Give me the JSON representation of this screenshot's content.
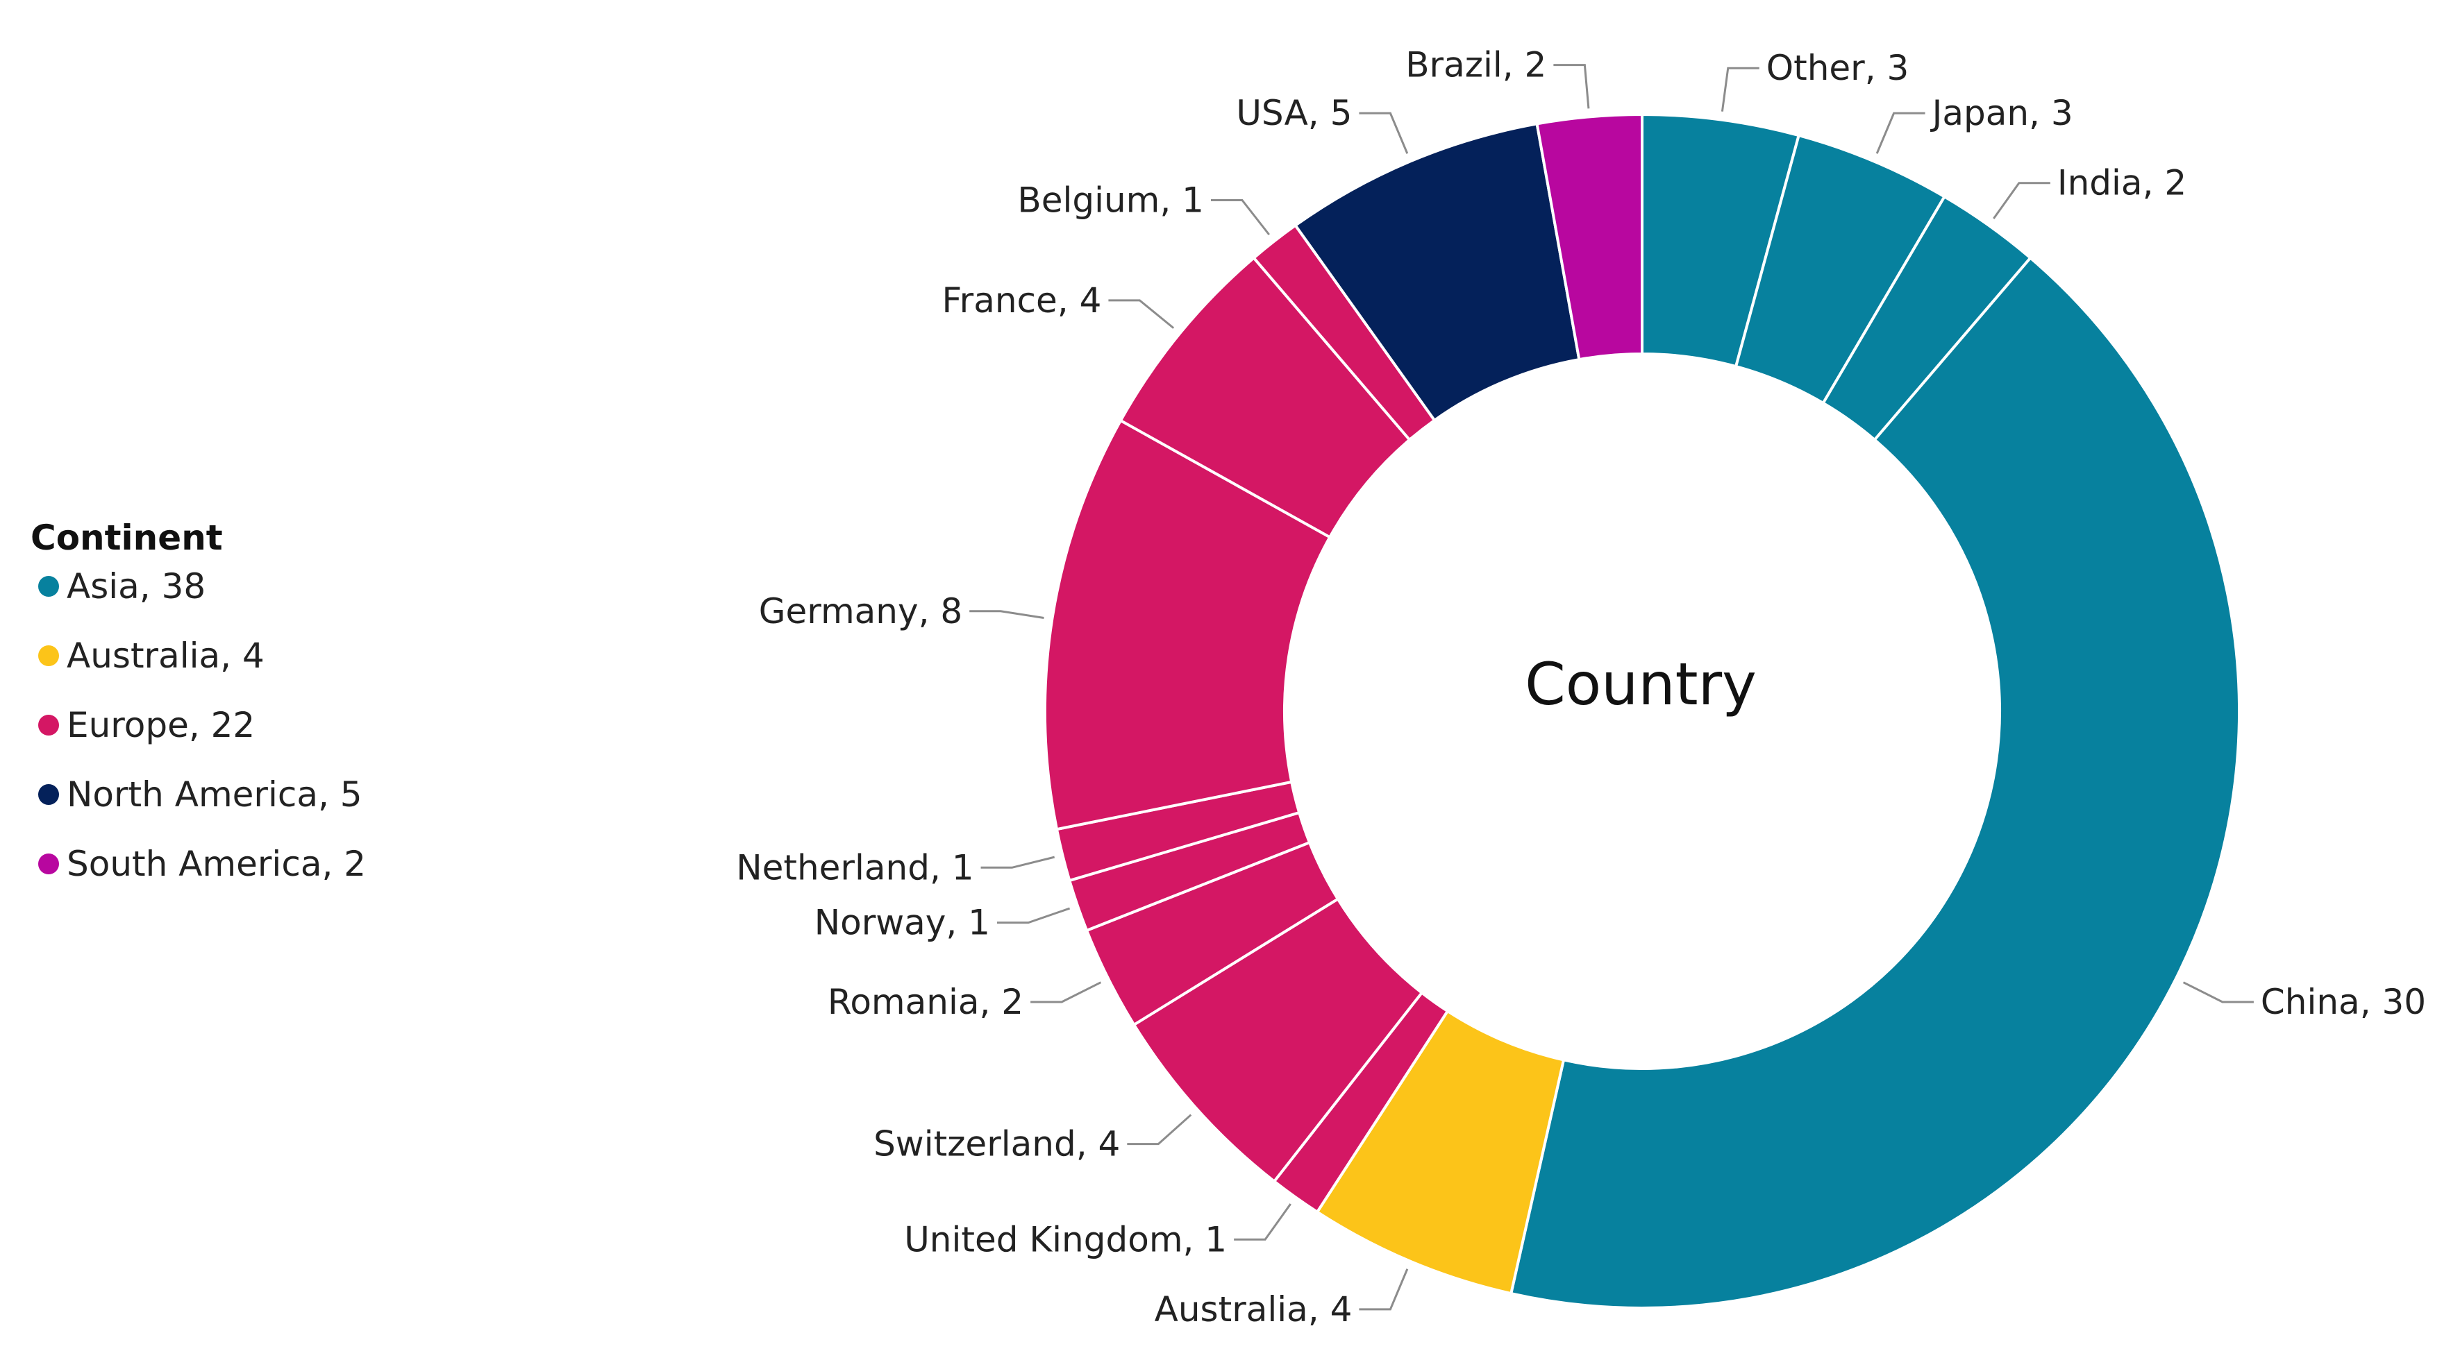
{
  "chart_data": {
    "type": "pie",
    "subtype": "donut",
    "center_label": "Country",
    "legend": {
      "title": "Continent",
      "placement": "left",
      "entries": [
        {
          "label": "Asia, 38",
          "color": "#07819e"
        },
        {
          "label": "Australia, 4",
          "color": "#fcc419"
        },
        {
          "label": "Europe, 22",
          "color": "#d41764"
        },
        {
          "label": "North America, 5",
          "color": "#04215a"
        },
        {
          "label": "South America, 2",
          "color": "#b8079f"
        }
      ]
    },
    "slices": [
      {
        "label": "Other, 3",
        "country": "Other",
        "value": 3,
        "continent": "Asia",
        "color": "#07819e"
      },
      {
        "label": "Japan, 3",
        "country": "Japan",
        "value": 3,
        "continent": "Asia",
        "color": "#07819e"
      },
      {
        "label": "India, 2",
        "country": "India",
        "value": 2,
        "continent": "Asia",
        "color": "#07819e"
      },
      {
        "label": "China, 30",
        "country": "China",
        "value": 30,
        "continent": "Asia",
        "color": "#07819e"
      },
      {
        "label": "Australia, 4",
        "country": "Australia",
        "value": 4,
        "continent": "Australia",
        "color": "#fcc419"
      },
      {
        "label": "United Kingdom, 1",
        "country": "United Kingdom",
        "value": 1,
        "continent": "Europe",
        "color": "#d41764"
      },
      {
        "label": "Switzerland, 4",
        "country": "Switzerland",
        "value": 4,
        "continent": "Europe",
        "color": "#d41764"
      },
      {
        "label": "Romania, 2",
        "country": "Romania",
        "value": 2,
        "continent": "Europe",
        "color": "#d41764"
      },
      {
        "label": "Norway, 1",
        "country": "Norway",
        "value": 1,
        "continent": "Europe",
        "color": "#d41764"
      },
      {
        "label": "Netherland, 1",
        "country": "Netherland",
        "value": 1,
        "continent": "Europe",
        "color": "#d41764"
      },
      {
        "label": "Germany, 8",
        "country": "Germany",
        "value": 8,
        "continent": "Europe",
        "color": "#d41764"
      },
      {
        "label": "France, 4",
        "country": "France",
        "value": 4,
        "continent": "Europe",
        "color": "#d41764"
      },
      {
        "label": "Belgium, 1",
        "country": "Belgium",
        "value": 1,
        "continent": "Europe",
        "color": "#d41764"
      },
      {
        "label": "USA, 5",
        "country": "USA",
        "value": 5,
        "continent": "North America",
        "color": "#04215a"
      },
      {
        "label": "Brazil, 2",
        "country": "Brazil",
        "value": 2,
        "continent": "South America",
        "color": "#b8079f"
      }
    ]
  }
}
